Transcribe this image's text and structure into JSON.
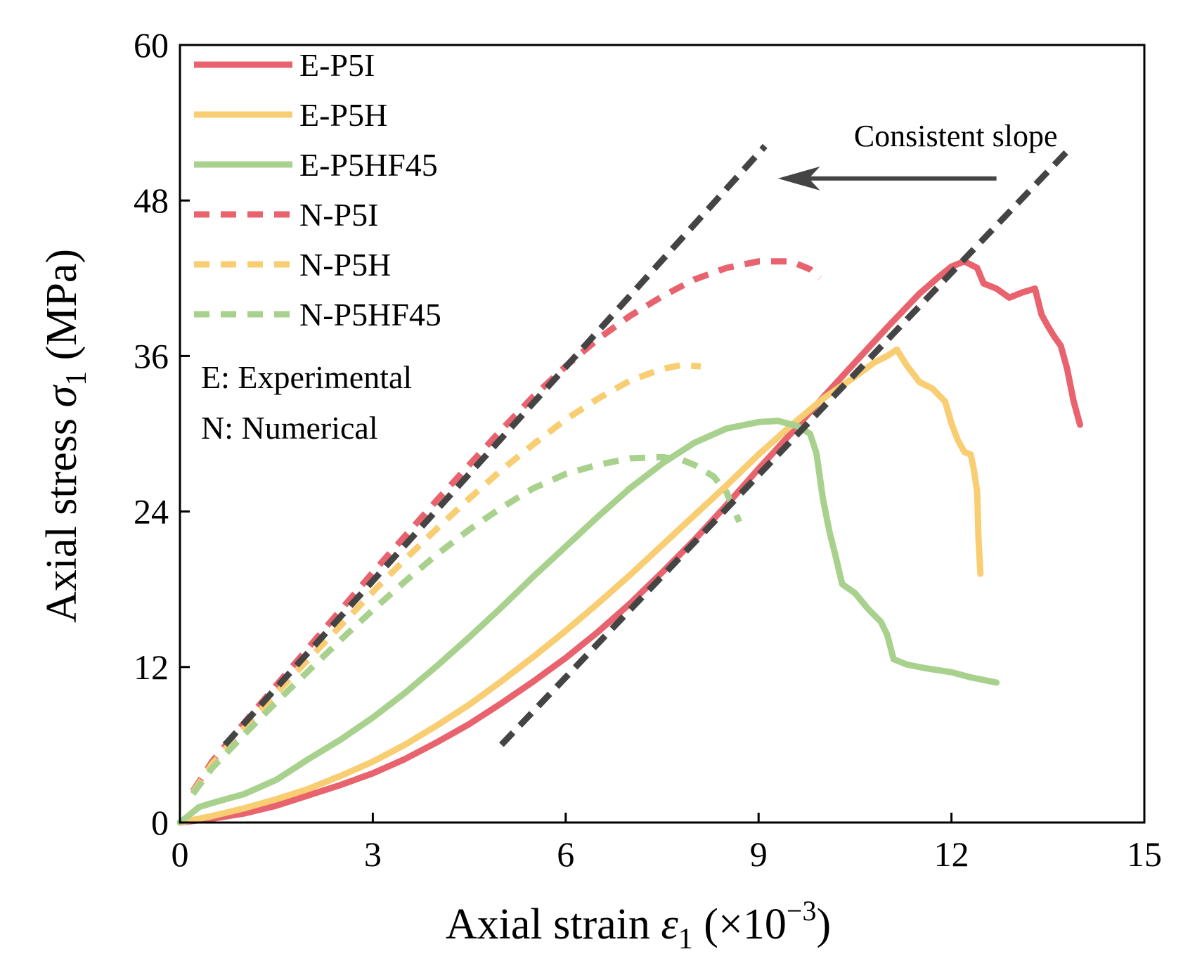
{
  "chart_data": {
    "type": "line",
    "xlabel": "Axial strain",
    "xlabel_symbol": "ε",
    "xlabel_subscript": "1",
    "xlabel_unit": "(×10",
    "xlabel_unit_exp": "−3",
    "xlabel_unit_close": ")",
    "ylabel": "Axial stress",
    "ylabel_symbol": "σ",
    "ylabel_subscript": "1",
    "ylabel_unit": "(MPa)",
    "xlim": [
      0,
      15
    ],
    "ylim": [
      0,
      60
    ],
    "xticks": [
      0,
      3,
      6,
      9,
      12,
      15
    ],
    "yticks": [
      0,
      12,
      24,
      36,
      48,
      60
    ],
    "grid": false,
    "legend_position": "top-left",
    "colors": {
      "red": "#e8636e",
      "yellow": "#f9cd72",
      "green": "#a9d18e",
      "guide": "#444444"
    },
    "series": [
      {
        "name": "E-P5I",
        "color": "#e8636e",
        "dash": "solid",
        "x": [
          0,
          0.5,
          1,
          1.5,
          2,
          2.5,
          3,
          3.5,
          4,
          4.5,
          5,
          5.5,
          6,
          6.5,
          7,
          7.5,
          8,
          8.5,
          9,
          9.5,
          10,
          10.5,
          11,
          11.5,
          11.8,
          12,
          12.2,
          12.4,
          12.5,
          12.7,
          12.9,
          13.1,
          13.3,
          13.4,
          13.5,
          13.6,
          13.7,
          13.8,
          13.9,
          14
        ],
        "y": [
          0,
          0.3,
          0.7,
          1.3,
          2.1,
          2.9,
          3.8,
          4.9,
          6.2,
          7.6,
          9.2,
          10.9,
          12.7,
          14.7,
          16.9,
          19.3,
          21.8,
          24.5,
          27.3,
          30,
          32.8,
          35.5,
          38.2,
          40.8,
          42.1,
          42.9,
          43.3,
          42.8,
          41.6,
          41.2,
          40.5,
          40.9,
          41.2,
          39.2,
          38.3,
          37.5,
          36.8,
          35,
          32.5,
          30.7
        ]
      },
      {
        "name": "E-P5H",
        "color": "#f9cd72",
        "dash": "solid",
        "x": [
          0,
          0.5,
          1,
          1.5,
          2,
          2.5,
          3,
          3.5,
          4,
          4.5,
          5,
          5.5,
          6,
          6.5,
          7,
          7.5,
          8,
          8.5,
          9,
          9.5,
          10,
          10.5,
          10.8,
          11,
          11.15,
          11.3,
          11.5,
          11.7,
          11.9,
          12,
          12.1,
          12.2,
          12.3,
          12.35,
          12.4,
          12.42,
          12.45
        ],
        "y": [
          0,
          0.5,
          1.1,
          1.8,
          2.6,
          3.6,
          4.7,
          6,
          7.5,
          9.1,
          10.9,
          12.8,
          14.8,
          16.9,
          19.1,
          21.4,
          23.7,
          26,
          28.4,
          30.6,
          32.7,
          34.4,
          35.5,
          36,
          36.5,
          35.3,
          34,
          33.5,
          32.5,
          30.8,
          29.5,
          28.6,
          28.4,
          27.2,
          25.5,
          22,
          19.2
        ]
      },
      {
        "name": "E-P5HF45",
        "color": "#a9d18e",
        "dash": "solid",
        "x": [
          0,
          0.3,
          0.5,
          1,
          1.5,
          2,
          2.5,
          3,
          3.5,
          4,
          4.5,
          5,
          5.5,
          6,
          6.5,
          7,
          7.5,
          8,
          8.5,
          9,
          9.3,
          9.6,
          9.8,
          9.9,
          10,
          10.1,
          10.2,
          10.3,
          10.5,
          10.7,
          10.9,
          11,
          11.1,
          11.3,
          11.6,
          12,
          12.3,
          12.7
        ],
        "y": [
          0,
          1.2,
          1.5,
          2.2,
          3.3,
          4.9,
          6.4,
          8.1,
          10,
          12.1,
          14.3,
          16.6,
          19,
          21.3,
          23.6,
          25.8,
          27.7,
          29.3,
          30.4,
          30.9,
          31,
          30.6,
          30,
          28.5,
          25,
          22.5,
          20.5,
          18.4,
          17.7,
          16.5,
          15.5,
          14.5,
          12.6,
          12.2,
          11.9,
          11.6,
          11.2,
          10.8
        ]
      },
      {
        "name": "N-P5I",
        "color": "#e8636e",
        "dash": "dashed",
        "x": [
          0.2,
          0.5,
          1,
          1.5,
          2,
          2.5,
          3,
          3.5,
          4,
          4.5,
          5,
          5.5,
          6,
          6.5,
          7,
          7.5,
          8,
          8.5,
          9,
          9.5,
          9.8,
          9.95
        ],
        "y": [
          2.4,
          4.7,
          7.7,
          10.6,
          13.5,
          16.4,
          19.3,
          22.1,
          24.9,
          27.6,
          30.3,
          32.9,
          35.2,
          37.3,
          39.1,
          40.6,
          41.9,
          42.8,
          43.3,
          43.3,
          42.7,
          42
        ]
      },
      {
        "name": "N-P5H",
        "color": "#f9cd72",
        "dash": "dashed",
        "x": [
          0.2,
          0.5,
          1,
          1.5,
          2,
          2.5,
          3,
          3.5,
          4,
          4.5,
          5,
          5.5,
          6,
          6.5,
          7,
          7.5,
          7.8,
          8.1
        ],
        "y": [
          2.3,
          4.5,
          7.3,
          10,
          12.6,
          15.2,
          17.8,
          20.3,
          22.7,
          25,
          27.2,
          29.2,
          31.1,
          32.7,
          34.1,
          35,
          35.3,
          35.2
        ]
      },
      {
        "name": "N-P5HF45",
        "color": "#a9d18e",
        "dash": "dashed",
        "x": [
          0.2,
          0.5,
          1,
          1.5,
          2,
          2.5,
          3,
          3.5,
          4,
          4.5,
          5,
          5.5,
          6,
          6.5,
          7,
          7.5,
          7.8,
          8,
          8.3,
          8.5,
          8.7
        ],
        "y": [
          2.2,
          4.2,
          6.8,
          9.3,
          11.7,
          14.1,
          16.4,
          18.6,
          20.7,
          22.6,
          24.3,
          25.8,
          26.9,
          27.6,
          28.1,
          28.2,
          28,
          27.6,
          26.7,
          25.5,
          23.2
        ]
      }
    ],
    "guides": [
      {
        "x": [
          0.7,
          9.1
        ],
        "y": [
          6,
          52.2
        ],
        "color": "#444444",
        "dash": "dashed"
      },
      {
        "x": [
          5,
          13.8
        ],
        "y": [
          6,
          51.8
        ],
        "color": "#444444",
        "dash": "dashed"
      }
    ],
    "annotation": {
      "text": "Consistent slope",
      "text_x": 13.65,
      "text_y": 53,
      "arrow_from": [
        12.7,
        49.7
      ],
      "arrow_to": [
        9.3,
        49.7
      ]
    },
    "notes": [
      "E: Experimental",
      "N: Numerical"
    ]
  }
}
